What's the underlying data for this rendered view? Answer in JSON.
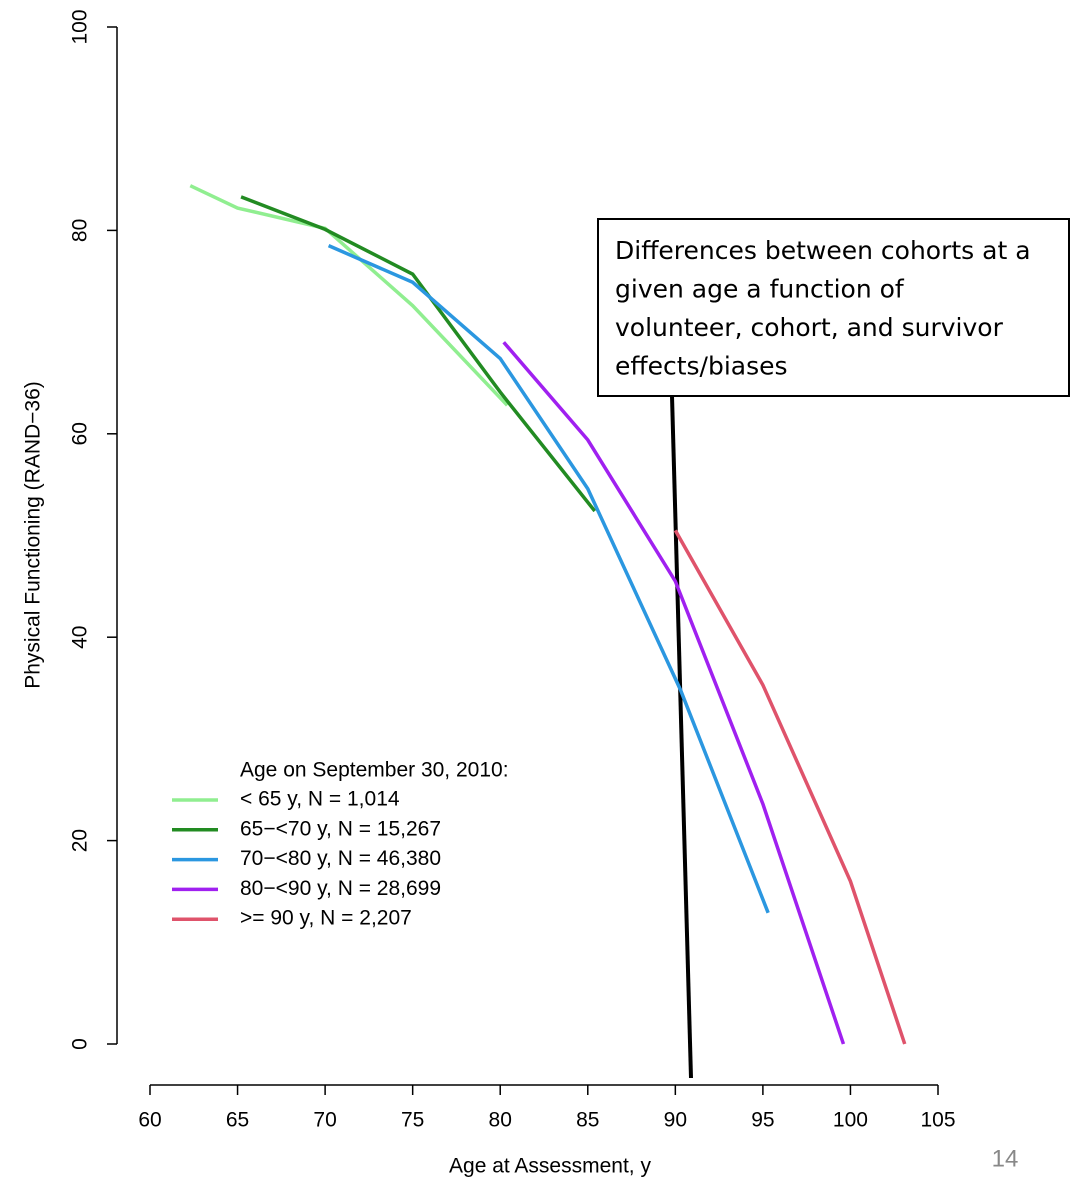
{
  "chart_data": {
    "type": "line",
    "x_label": "Age at Assessment, y",
    "y_label": "Physical Functioning (RAND−36)",
    "xlim": [
      60,
      105
    ],
    "xticks": [
      60,
      65,
      70,
      75,
      80,
      85,
      90,
      95,
      100,
      105
    ],
    "ylim": [
      0,
      100
    ],
    "yticks": [
      0,
      20,
      40,
      60,
      80,
      100
    ],
    "legend_title": "Age on September 30, 2010:",
    "legend_position": "lower-left",
    "series": [
      {
        "name": "< 65 y,  N = 1,014",
        "color": "#90ee90",
        "x": [
          62.3,
          65,
          70,
          75,
          80.4
        ],
        "values": [
          84.4,
          82.2,
          80.2,
          72.6,
          62.8
        ]
      },
      {
        "name": "65−<70 y,  N = 15,267",
        "color": "#228b22",
        "x": [
          65.2,
          70,
          75,
          80,
          85.4
        ],
        "values": [
          83.3,
          80.1,
          75.7,
          64.1,
          52.4
        ]
      },
      {
        "name": "70−<80 y,  N = 46,380",
        "color": "#2b97e0",
        "x": [
          70.2,
          75,
          80,
          85,
          90.3,
          95.3
        ],
        "values": [
          78.5,
          74.9,
          67.4,
          54.6,
          34.8,
          12.9
        ]
      },
      {
        "name": "80−<90 y,  N = 28,699",
        "color": "#a020f0",
        "x": [
          80.2,
          85,
          90,
          95,
          99.6
        ],
        "values": [
          69.0,
          59.4,
          45.5,
          23.6,
          0
        ]
      },
      {
        "name": ">= 90 y,  N = 2,207",
        "color": "#df536b",
        "x": [
          90,
          95,
          100,
          103.1
        ],
        "values": [
          50.5,
          35.3,
          16.0,
          0
        ]
      }
    ],
    "annotation": [
      "Differences between cohorts at a",
      "given age a function of",
      "volunteer, cohort, and survivor",
      "effects/biases"
    ],
    "page_number": "14"
  }
}
